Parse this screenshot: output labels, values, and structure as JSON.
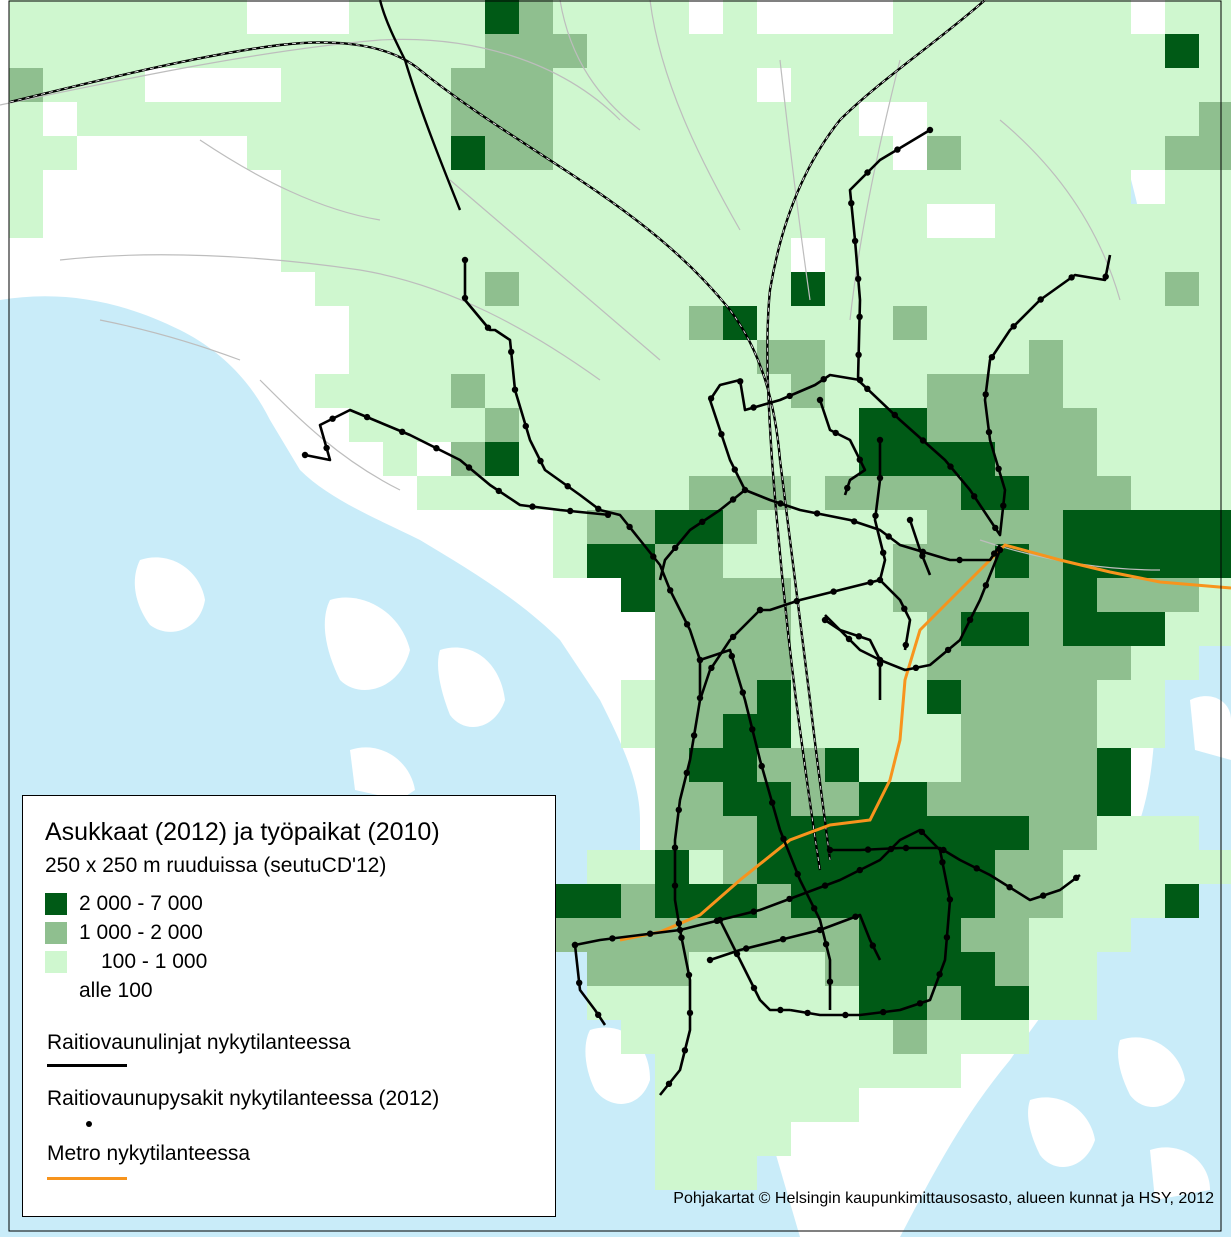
{
  "colors": {
    "water": "#c9ecf9",
    "land": "#ffffff",
    "dark_green": "#005a16",
    "mid_green": "#8fbf8f",
    "light_green": "#cff7cf",
    "tram": "#000000",
    "metro": "#f7941d",
    "road": "#cccccc"
  },
  "legend": {
    "title": "Asukkaat (2012) ja työpaikat (2010)",
    "subtitle": "250 x 250 m ruuduissa (seutuCD'12)",
    "classes": [
      {
        "label": "2 000 - 7 000",
        "color": "#005a16"
      },
      {
        "label": "1 000 - 2 000",
        "color": "#8fbf8f"
      },
      {
        "label": "100 - 1 000",
        "color": "#cff7cf"
      },
      {
        "label": "alle 100",
        "color": ""
      }
    ],
    "tram_lines_label": "Raitiovaunulinjat nykytilanteessa",
    "tram_stops_label": "Raitiovaunupysakit nykytilanteessa (2012)",
    "metro_label": "Metro nykytilanteessa"
  },
  "credit": "Pohjakartat © Helsingin kaupunkimittausosasto, alueen kunnat ja HSY, 2012"
}
